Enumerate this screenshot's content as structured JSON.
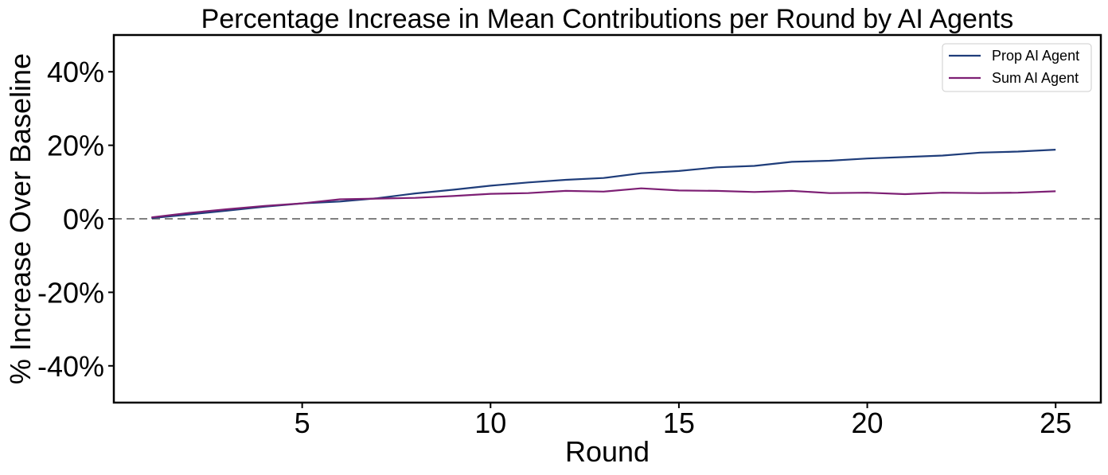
{
  "chart_data": {
    "type": "line",
    "title": "Percentage Increase in Mean Contributions per Round by AI Agents",
    "xlabel": "Round",
    "ylabel": "% Increase Over Baseline",
    "xlim": [
      0,
      26.2
    ],
    "ylim": [
      -50,
      50
    ],
    "xticks": [
      5,
      10,
      15,
      20,
      25
    ],
    "yticks": [
      -40,
      -20,
      0,
      20,
      40
    ],
    "ytick_labels": [
      "-40%",
      "-20%",
      "0%",
      "20%",
      "40%"
    ],
    "grid": false,
    "legend_position": "top-right",
    "baseline": {
      "y": 0,
      "style": "dashed",
      "color": "#808080"
    },
    "x": [
      1,
      2,
      3,
      4,
      5,
      6,
      7,
      8,
      9,
      10,
      11,
      12,
      13,
      14,
      15,
      16,
      17,
      18,
      19,
      20,
      21,
      22,
      23,
      24,
      25
    ],
    "series": [
      {
        "name": "Prop AI Agent",
        "color": "#1f3d7a",
        "values": [
          0.2,
          1.2,
          2.2,
          3.3,
          4.2,
          4.7,
          5.6,
          6.9,
          7.9,
          9.0,
          9.9,
          10.6,
          11.1,
          12.4,
          13.0,
          14.0,
          14.4,
          15.5,
          15.8,
          16.4,
          16.8,
          17.2,
          18.0,
          18.3,
          18.8
        ]
      },
      {
        "name": "Sum AI Agent",
        "color": "#7d1f74",
        "values": [
          0.4,
          1.6,
          2.6,
          3.5,
          4.2,
          5.3,
          5.5,
          5.7,
          6.2,
          6.8,
          7.0,
          7.6,
          7.4,
          8.3,
          7.7,
          7.6,
          7.3,
          7.6,
          7.0,
          7.1,
          6.7,
          7.1,
          7.0,
          7.1,
          7.5
        ]
      }
    ]
  }
}
